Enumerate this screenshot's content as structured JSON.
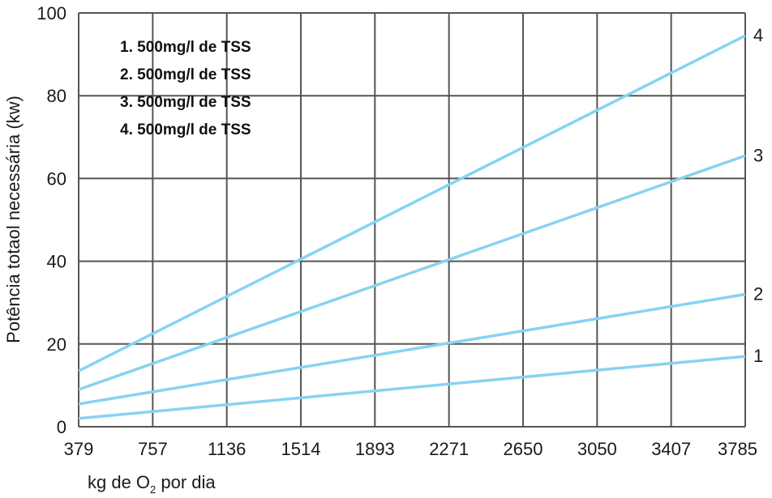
{
  "chart_data": {
    "type": "line",
    "title": "",
    "ylabel": "Potência totaol necessária (kw)",
    "xlabel": {
      "prefix": "kg de O",
      "sub": "2",
      "suffix": " por dia"
    },
    "x_ticks": [
      "379",
      "757",
      "1136",
      "1514",
      "1893",
      "2271",
      "2650",
      "3050",
      "3407",
      "3785"
    ],
    "y_ticks": [
      "0",
      "20",
      "40",
      "60",
      "80",
      "100"
    ],
    "ylim": [
      0,
      100
    ],
    "x_values": [
      379,
      3785
    ],
    "grid": true,
    "legend_position": "top-left",
    "legend": [
      "1. 500mg/l de TSS",
      "2. 500mg/l de TSS",
      "3. 500mg/l de TSS",
      "4. 500mg/l de TSS"
    ],
    "series": [
      {
        "label": "1",
        "values": [
          2,
          17
        ]
      },
      {
        "label": "2",
        "values": [
          5.5,
          32
        ]
      },
      {
        "label": "3",
        "values": [
          9,
          65.5
        ]
      },
      {
        "label": "4",
        "values": [
          13.5,
          94.5
        ]
      }
    ],
    "line_color": "#86d3f2",
    "grid_color": "#555555"
  }
}
